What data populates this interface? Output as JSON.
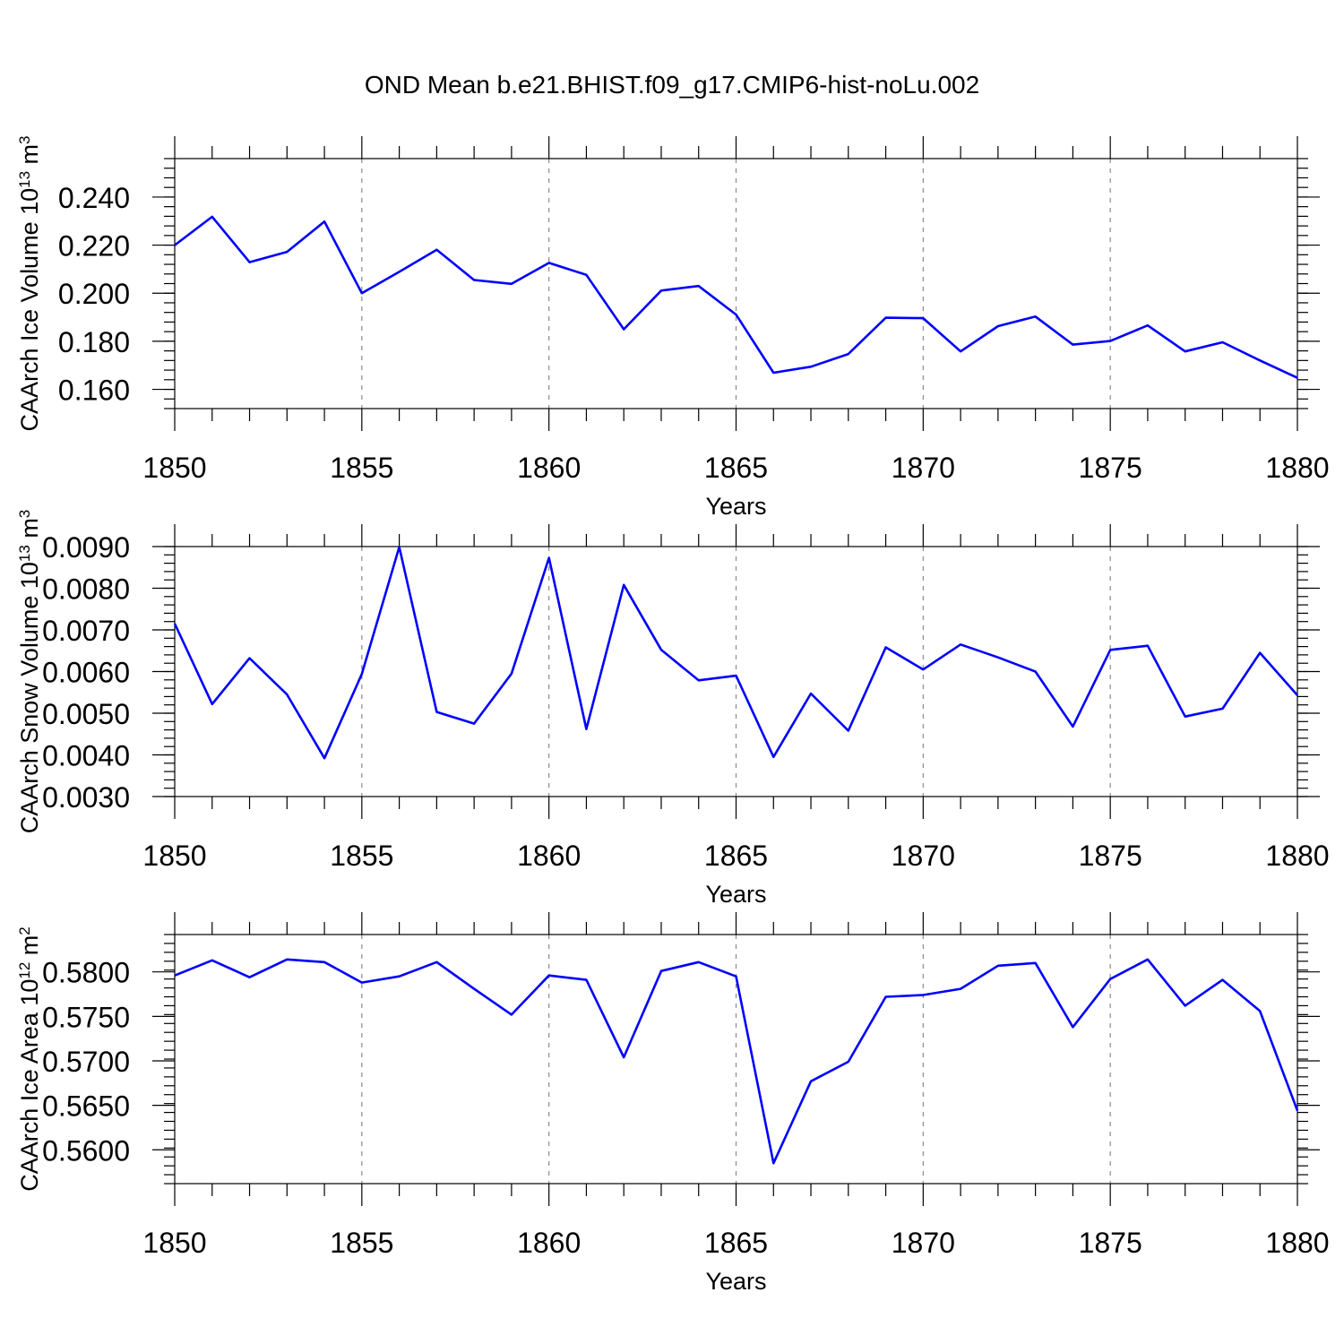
{
  "title": "OND Mean b.e21.BHIST.f09_g17.CMIP6-hist-noLu.002",
  "chart_data": [
    {
      "type": "line",
      "id": "ice-volume",
      "title": "",
      "xlabel": "Years",
      "ylabel": "CAArch Ice Volume 10",
      "ylabel_exp": "13",
      "ylabel_unit": " m",
      "ylabel_unit_exp": "3",
      "xlim": [
        1850,
        1880
      ],
      "ylim": [
        0.152,
        0.256
      ],
      "x_ticks": [
        1850,
        1855,
        1860,
        1865,
        1870,
        1875,
        1880
      ],
      "y_ticks": [
        0.16,
        0.18,
        0.2,
        0.22,
        0.24
      ],
      "y_tick_labels": [
        "0.160",
        "0.180",
        "0.200",
        "0.220",
        "0.240"
      ],
      "y_minor_step": 0.004,
      "grid": "vertical-dashed",
      "series_color": "#0000ff",
      "x": [
        1850,
        1851,
        1852,
        1853,
        1854,
        1855,
        1856,
        1857,
        1858,
        1859,
        1860,
        1861,
        1862,
        1863,
        1864,
        1865,
        1866,
        1867,
        1868,
        1869,
        1870,
        1871,
        1872,
        1873,
        1874,
        1875,
        1876,
        1877,
        1878,
        1879,
        1880
      ],
      "values": [
        0.22,
        0.2318,
        0.2129,
        0.2172,
        0.2298,
        0.2,
        0.2089,
        0.2181,
        0.2055,
        0.2039,
        0.2126,
        0.2076,
        0.185,
        0.2011,
        0.203,
        0.1911,
        0.1669,
        0.1694,
        0.1747,
        0.1898,
        0.1896,
        0.1758,
        0.1863,
        0.1903,
        0.1786,
        0.1801,
        0.1866,
        0.1758,
        0.1796,
        0.172,
        0.1648
      ]
    },
    {
      "type": "line",
      "id": "snow-volume",
      "title": "",
      "xlabel": "Years",
      "ylabel": "CAArch Snow Volume 10",
      "ylabel_exp": "13",
      "ylabel_unit": " m",
      "ylabel_unit_exp": "3",
      "xlim": [
        1850,
        1880
      ],
      "ylim": [
        0.003,
        0.009
      ],
      "x_ticks": [
        1850,
        1855,
        1860,
        1865,
        1870,
        1875,
        1880
      ],
      "y_ticks": [
        0.003,
        0.004,
        0.005,
        0.006,
        0.007,
        0.008,
        0.009
      ],
      "y_tick_labels": [
        "0.0030",
        "0.0040",
        "0.0050",
        "0.0060",
        "0.0070",
        "0.0080",
        "0.0090"
      ],
      "y_minor_step": 0.0002,
      "grid": "vertical-dashed",
      "series_color": "#0000ff",
      "x": [
        1850,
        1851,
        1852,
        1853,
        1854,
        1855,
        1856,
        1857,
        1858,
        1859,
        1860,
        1861,
        1862,
        1863,
        1864,
        1865,
        1866,
        1867,
        1868,
        1869,
        1870,
        1871,
        1872,
        1873,
        1874,
        1875,
        1876,
        1877,
        1878,
        1879,
        1880
      ],
      "values": [
        0.00715,
        0.00522,
        0.00632,
        0.00545,
        0.00392,
        0.00594,
        0.00899,
        0.00503,
        0.00475,
        0.00595,
        0.00873,
        0.00462,
        0.00808,
        0.00652,
        0.00579,
        0.0059,
        0.00395,
        0.00547,
        0.00458,
        0.00658,
        0.00605,
        0.00665,
        0.00634,
        0.006,
        0.00468,
        0.00652,
        0.00662,
        0.00492,
        0.00511,
        0.00645,
        0.00543
      ]
    },
    {
      "type": "line",
      "id": "ice-area",
      "title": "",
      "xlabel": "Years",
      "ylabel": "CAArch Ice Area 10",
      "ylabel_exp": "12",
      "ylabel_unit": " m",
      "ylabel_unit_exp": "2",
      "xlim": [
        1850,
        1880
      ],
      "ylim": [
        0.5562,
        0.5842
      ],
      "x_ticks": [
        1850,
        1855,
        1860,
        1865,
        1870,
        1875,
        1880
      ],
      "y_ticks": [
        0.56,
        0.565,
        0.57,
        0.575,
        0.58
      ],
      "y_tick_labels": [
        "0.5600",
        "0.5650",
        "0.5700",
        "0.5750",
        "0.5800"
      ],
      "y_minor_step": 0.001,
      "grid": "vertical-dashed",
      "series_color": "#0000ff",
      "x": [
        1850,
        1851,
        1852,
        1853,
        1854,
        1855,
        1856,
        1857,
        1858,
        1859,
        1860,
        1861,
        1862,
        1863,
        1864,
        1865,
        1866,
        1867,
        1868,
        1869,
        1870,
        1871,
        1872,
        1873,
        1874,
        1875,
        1876,
        1877,
        1878,
        1879,
        1880
      ],
      "values": [
        0.5796,
        0.5813,
        0.5794,
        0.5814,
        0.5811,
        0.5788,
        0.5795,
        0.5811,
        0.5781,
        0.5752,
        0.5796,
        0.5791,
        0.5704,
        0.5801,
        0.5811,
        0.5795,
        0.5585,
        0.5677,
        0.5699,
        0.5772,
        0.5774,
        0.5781,
        0.5807,
        0.581,
        0.5738,
        0.5792,
        0.5814,
        0.5762,
        0.5791,
        0.5756,
        0.5644
      ]
    }
  ]
}
